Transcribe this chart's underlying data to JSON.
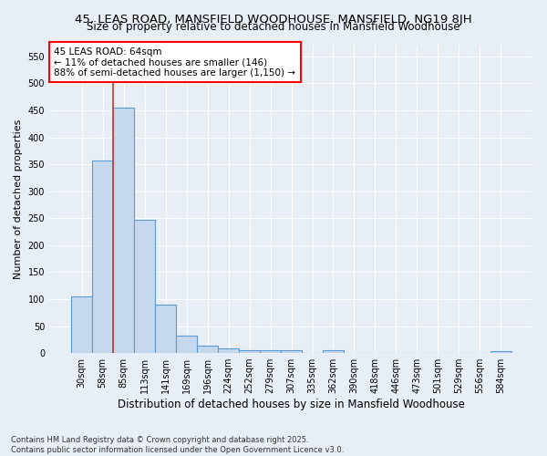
{
  "title": "45, LEAS ROAD, MANSFIELD WOODHOUSE, MANSFIELD, NG19 8JH",
  "subtitle": "Size of property relative to detached houses in Mansfield Woodhouse",
  "xlabel": "Distribution of detached houses by size in Mansfield Woodhouse",
  "ylabel": "Number of detached properties",
  "categories": [
    "30sqm",
    "58sqm",
    "85sqm",
    "113sqm",
    "141sqm",
    "169sqm",
    "196sqm",
    "224sqm",
    "252sqm",
    "279sqm",
    "307sqm",
    "335sqm",
    "362sqm",
    "390sqm",
    "418sqm",
    "446sqm",
    "473sqm",
    "501sqm",
    "529sqm",
    "556sqm",
    "584sqm"
  ],
  "values": [
    105,
    357,
    455,
    247,
    90,
    32,
    13,
    9,
    6,
    6,
    5,
    0,
    5,
    0,
    0,
    0,
    0,
    0,
    0,
    0,
    4
  ],
  "bar_color": "#c5d8ed",
  "bar_edge_color": "#5b9bd5",
  "annotation_box_text": "45 LEAS ROAD: 64sqm\n← 11% of detached houses are smaller (146)\n88% of semi-detached houses are larger (1,150) →",
  "vline_x": 1.5,
  "ylim": [
    0,
    570
  ],
  "yticks": [
    0,
    50,
    100,
    150,
    200,
    250,
    300,
    350,
    400,
    450,
    500,
    550
  ],
  "background_color": "#e8eef5",
  "grid_color": "#ffffff",
  "footer": "Contains HM Land Registry data © Crown copyright and database right 2025.\nContains public sector information licensed under the Open Government Licence v3.0.",
  "title_fontsize": 9.5,
  "subtitle_fontsize": 8.5,
  "xlabel_fontsize": 8.5,
  "ylabel_fontsize": 8,
  "tick_fontsize": 7,
  "annotation_fontsize": 7.5,
  "footer_fontsize": 6
}
